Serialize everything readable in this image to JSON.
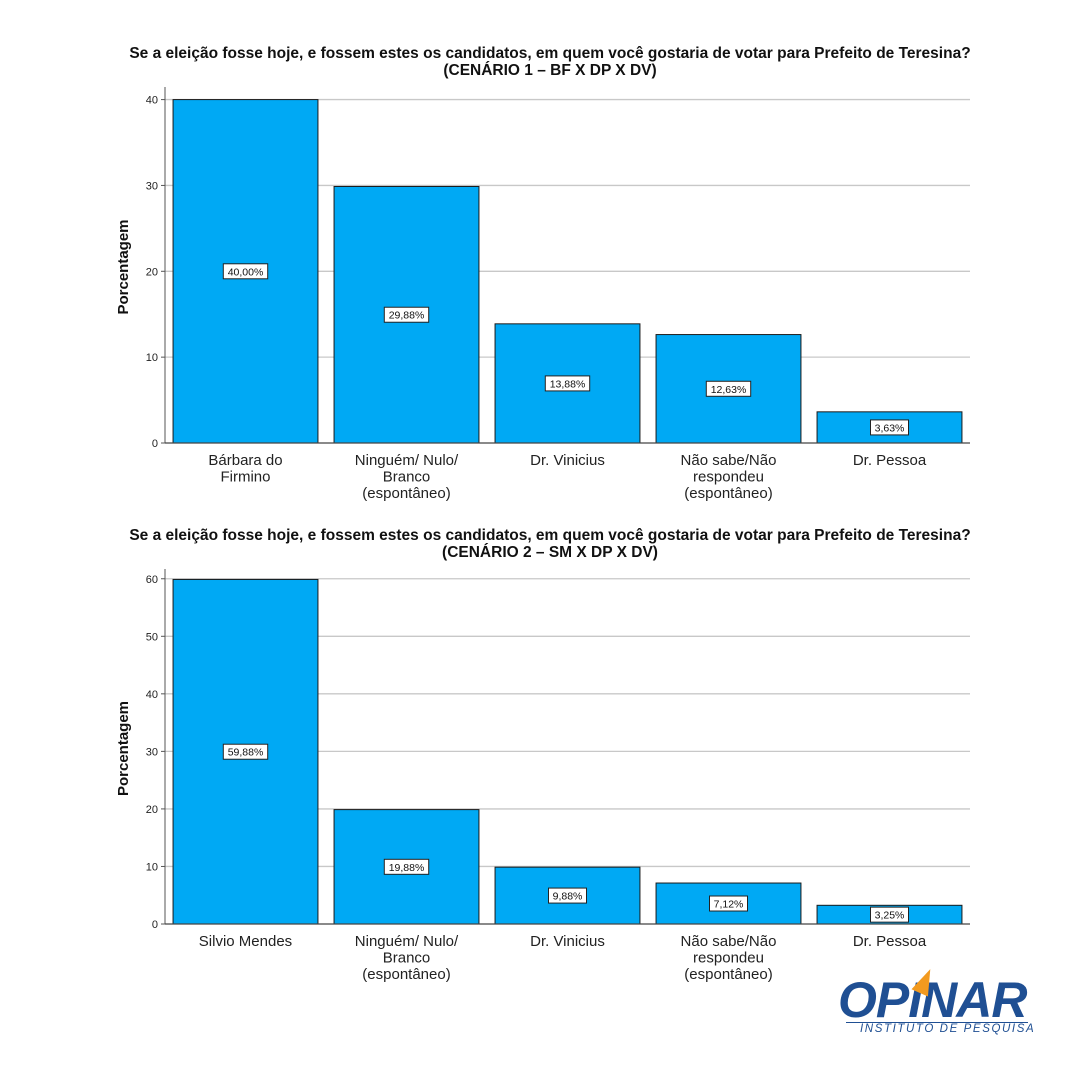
{
  "chart_data": [
    {
      "type": "bar",
      "title": "Se a eleição fosse hoje, e fossem estes os candidatos, em quem você gostaria de votar  para Prefeito de Teresina? (CENÁRIO 1 – BF X DP X DV)",
      "ylabel": "Porcentagem",
      "xlabel": "",
      "ylim": [
        0,
        41
      ],
      "yticks": [
        0,
        10,
        20,
        30,
        40
      ],
      "grid": true,
      "bar_color": "#00a9f4",
      "categories": [
        [
          "Bárbara do",
          "Firmino"
        ],
        [
          "Ninguém/ Nulo/",
          "Branco",
          "(espontâneo)"
        ],
        [
          "Dr. Vinicius"
        ],
        [
          "Não sabe/Não",
          "respondeu",
          "(espontâneo)"
        ],
        [
          "Dr. Pessoa"
        ]
      ],
      "values": [
        40.0,
        29.88,
        13.88,
        12.63,
        3.63
      ],
      "data_labels": [
        "40,00%",
        "29,88%",
        "13,88%",
        "12,63%",
        "3,63%"
      ]
    },
    {
      "type": "bar",
      "title": "Se a eleição fosse hoje, e fossem estes os candidatos, em quem você gostaria de votar  para Prefeito de Teresina?  (CENÁRIO 2 – SM X DP X DV)",
      "ylabel": "Porcentagem",
      "xlabel": "",
      "ylim": [
        0,
        61
      ],
      "yticks": [
        0,
        10,
        20,
        30,
        40,
        50,
        60
      ],
      "grid": true,
      "bar_color": "#00a9f4",
      "categories": [
        [
          "Silvio Mendes"
        ],
        [
          "Ninguém/ Nulo/",
          "Branco",
          "(espontâneo)"
        ],
        [
          "Dr. Vinicius"
        ],
        [
          "Não sabe/Não",
          "respondeu",
          "(espontâneo)"
        ],
        [
          "Dr. Pessoa"
        ]
      ],
      "values": [
        59.88,
        19.88,
        9.88,
        7.12,
        3.25
      ],
      "data_labels": [
        "59,88%",
        "19,88%",
        "9,88%",
        "7,12%",
        "3,25%"
      ]
    }
  ],
  "logo": {
    "word": "OPINAR",
    "subtitle": "INSTITUTO DE PESQUISA",
    "primary_color": "#1f4f93",
    "accent_color": "#f29a1f"
  }
}
